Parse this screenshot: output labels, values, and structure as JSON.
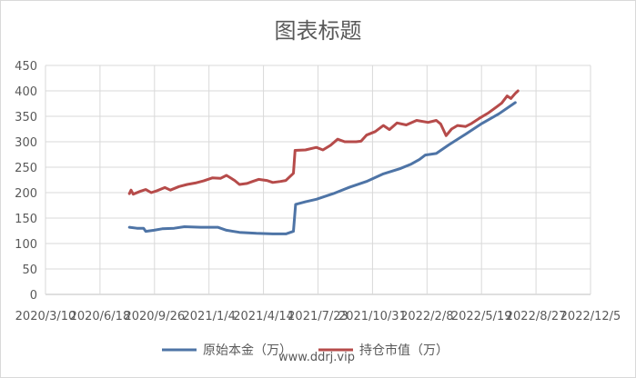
{
  "chart_data": {
    "type": "line",
    "title": "图表标题",
    "xlabel": "",
    "ylabel": "",
    "ylim": [
      0,
      450
    ],
    "y_ticks": [
      0,
      50,
      100,
      150,
      200,
      250,
      300,
      350,
      400,
      450
    ],
    "x_tick_labels": [
      "2020/3/10",
      "2020/6/18",
      "2020/9/26",
      "2021/1/4",
      "2021/4/14",
      "2021/7/23",
      "2021/10/31",
      "2022/2/8",
      "2022/5/19",
      "2022/8/27",
      "2022/12/5"
    ],
    "xlim": [
      "2020-03-10",
      "2022-12-05"
    ],
    "grid": true,
    "legend_position": "bottom",
    "series": [
      {
        "name": "原始本金（万）",
        "color": "#4e74a6",
        "points": [
          [
            "2020-08-11",
            132
          ],
          [
            "2020-08-25",
            130
          ],
          [
            "2020-09-06",
            130
          ],
          [
            "2020-09-10",
            124
          ],
          [
            "2020-09-25",
            126
          ],
          [
            "2020-10-10",
            129
          ],
          [
            "2020-11-01",
            130
          ],
          [
            "2020-11-20",
            133
          ],
          [
            "2020-12-20",
            132
          ],
          [
            "2021-01-20",
            132
          ],
          [
            "2021-02-05",
            126
          ],
          [
            "2021-03-01",
            122
          ],
          [
            "2021-04-01",
            120
          ],
          [
            "2021-05-01",
            119
          ],
          [
            "2021-05-25",
            119
          ],
          [
            "2021-06-08",
            124
          ],
          [
            "2021-06-12",
            177
          ],
          [
            "2021-06-30",
            182
          ],
          [
            "2021-07-20",
            187
          ],
          [
            "2021-08-20",
            198
          ],
          [
            "2021-09-20",
            211
          ],
          [
            "2021-10-20",
            222
          ],
          [
            "2021-11-20",
            237
          ],
          [
            "2021-12-20",
            247
          ],
          [
            "2022-01-10",
            256
          ],
          [
            "2022-01-25",
            265
          ],
          [
            "2022-02-05",
            274
          ],
          [
            "2022-02-25",
            277
          ],
          [
            "2022-03-20",
            294
          ],
          [
            "2022-04-20",
            315
          ],
          [
            "2022-05-20",
            336
          ],
          [
            "2022-06-20",
            355
          ],
          [
            "2022-07-20",
            377
          ]
        ]
      },
      {
        "name": "持仓市值（万）",
        "color": "#b64b4a",
        "points": [
          [
            "2020-08-11",
            198
          ],
          [
            "2020-08-14",
            205
          ],
          [
            "2020-08-18",
            197
          ],
          [
            "2020-09-01",
            203
          ],
          [
            "2020-09-10",
            206
          ],
          [
            "2020-09-20",
            200
          ],
          [
            "2020-10-01",
            204
          ],
          [
            "2020-10-15",
            210
          ],
          [
            "2020-10-25",
            205
          ],
          [
            "2020-11-10",
            212
          ],
          [
            "2020-11-25",
            216
          ],
          [
            "2020-12-10",
            219
          ],
          [
            "2020-12-25",
            223
          ],
          [
            "2021-01-10",
            229
          ],
          [
            "2021-01-25",
            228
          ],
          [
            "2021-02-05",
            234
          ],
          [
            "2021-02-20",
            224
          ],
          [
            "2021-03-01",
            216
          ],
          [
            "2021-03-15",
            218
          ],
          [
            "2021-03-25",
            222
          ],
          [
            "2021-04-05",
            226
          ],
          [
            "2021-04-20",
            224
          ],
          [
            "2021-05-01",
            220
          ],
          [
            "2021-05-15",
            222
          ],
          [
            "2021-05-25",
            224
          ],
          [
            "2021-06-08",
            238
          ],
          [
            "2021-06-11",
            283
          ],
          [
            "2021-06-30",
            284
          ],
          [
            "2021-07-20",
            289
          ],
          [
            "2021-08-01",
            284
          ],
          [
            "2021-08-15",
            293
          ],
          [
            "2021-08-28",
            305
          ],
          [
            "2021-09-10",
            300
          ],
          [
            "2021-10-01",
            300
          ],
          [
            "2021-10-10",
            301
          ],
          [
            "2021-10-20",
            313
          ],
          [
            "2021-11-05",
            320
          ],
          [
            "2021-11-20",
            332
          ],
          [
            "2021-12-01",
            324
          ],
          [
            "2021-12-15",
            337
          ],
          [
            "2022-01-01",
            333
          ],
          [
            "2022-01-20",
            342
          ],
          [
            "2022-02-10",
            338
          ],
          [
            "2022-02-25",
            342
          ],
          [
            "2022-03-05",
            335
          ],
          [
            "2022-03-15",
            312
          ],
          [
            "2022-03-25",
            325
          ],
          [
            "2022-04-05",
            332
          ],
          [
            "2022-04-20",
            330
          ],
          [
            "2022-05-01",
            336
          ],
          [
            "2022-05-15",
            346
          ],
          [
            "2022-06-01",
            357
          ],
          [
            "2022-06-15",
            368
          ],
          [
            "2022-06-25",
            376
          ],
          [
            "2022-07-05",
            390
          ],
          [
            "2022-07-12",
            385
          ],
          [
            "2022-07-20",
            395
          ],
          [
            "2022-07-25",
            400
          ]
        ]
      }
    ]
  },
  "watermark": "www.ddrj.vip"
}
